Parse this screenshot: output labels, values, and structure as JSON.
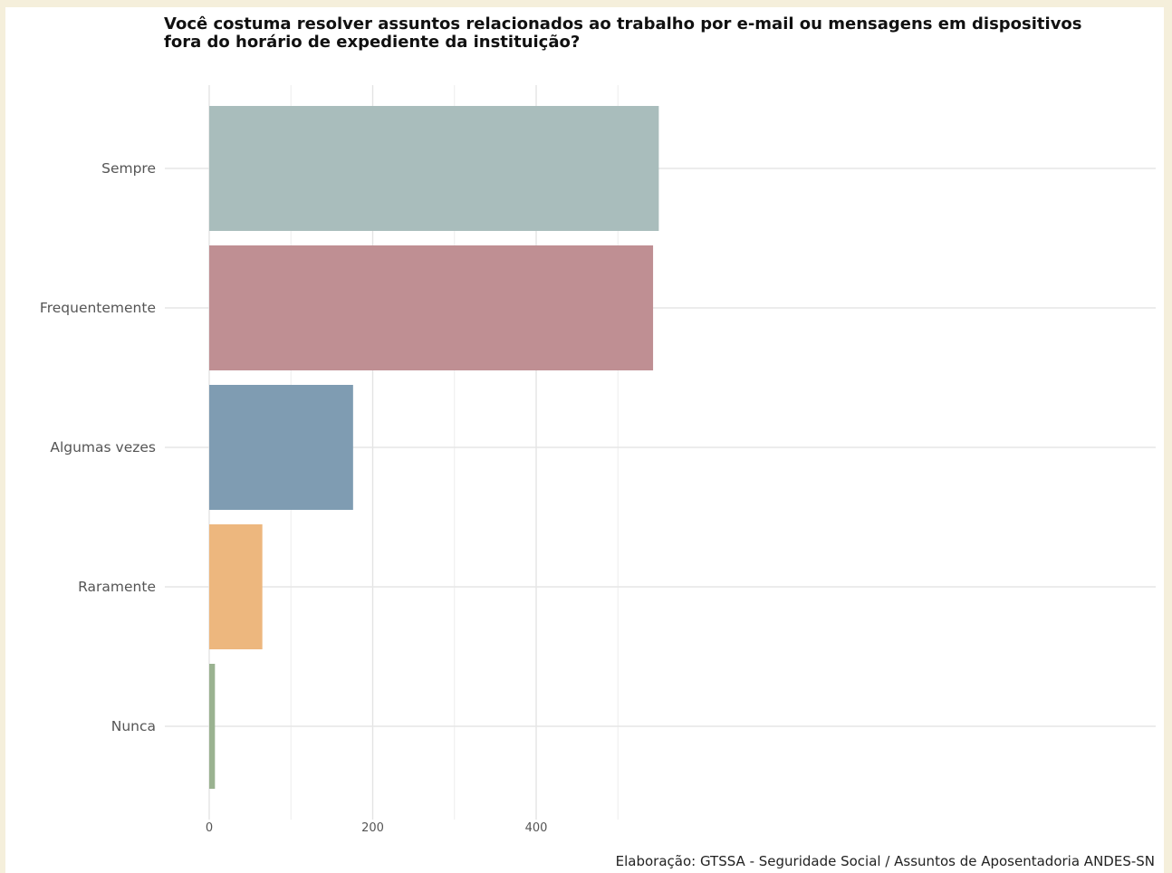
{
  "chart_data": {
    "type": "bar",
    "orientation": "horizontal",
    "title": "Você costuma resolver assuntos relacionados ao trabalho por e-mail ou mensagens em dispositivos\nfora do horário de expediente da instituição?",
    "caption": "Elaboração: GTSSA - Seguridade Social / Assuntos de Aposentadoria ANDES-SN",
    "categories": [
      "Sempre",
      "Frequentemente",
      "Algumas vezes",
      "Raramente",
      "Nunca"
    ],
    "values": [
      550,
      543,
      176,
      65,
      7
    ],
    "colors": [
      "#a9bdbc",
      "#bf8f93",
      "#7f9cb2",
      "#edb77e",
      "#9ab290"
    ],
    "x_ticks": [
      0,
      200,
      400
    ],
    "xlim": [
      0,
      578
    ],
    "xlabel": "",
    "ylabel": "",
    "grid": true,
    "legend": "none"
  }
}
